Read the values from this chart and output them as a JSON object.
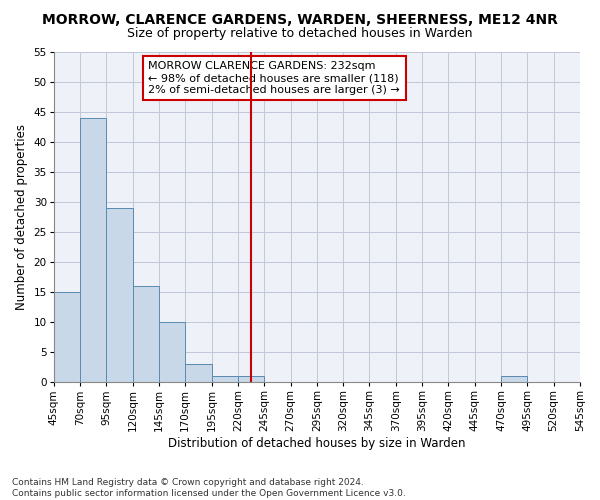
{
  "title": "MORROW, CLARENCE GARDENS, WARDEN, SHEERNESS, ME12 4NR",
  "subtitle": "Size of property relative to detached houses in Warden",
  "xlabel": "Distribution of detached houses by size in Warden",
  "ylabel": "Number of detached properties",
  "footer_line1": "Contains HM Land Registry data © Crown copyright and database right 2024.",
  "footer_line2": "Contains public sector information licensed under the Open Government Licence v3.0.",
  "bins": [
    45,
    70,
    95,
    120,
    145,
    170,
    195,
    220,
    245,
    270,
    295,
    320,
    345,
    370,
    395,
    420,
    445,
    470,
    495,
    520,
    545
  ],
  "bar_values": [
    15,
    44,
    29,
    16,
    10,
    3,
    1,
    1,
    0,
    0,
    0,
    0,
    0,
    0,
    0,
    0,
    0,
    1,
    0,
    0
  ],
  "bar_color": "#c8d8e8",
  "bar_edgecolor": "#5a8ab0",
  "grid_color": "#c0c8d8",
  "background_color": "#eef2f8",
  "vline_x": 232,
  "vline_color": "#cc0000",
  "annotation_line1": "MORROW CLARENCE GARDENS: 232sqm",
  "annotation_line2": "← 98% of detached houses are smaller (118)",
  "annotation_line3": "2% of semi-detached houses are larger (3) →",
  "annotation_box_color": "#cc0000",
  "ylim": [
    0,
    55
  ],
  "yticks": [
    0,
    5,
    10,
    15,
    20,
    25,
    30,
    35,
    40,
    45,
    50,
    55
  ],
  "title_fontsize": 10,
  "subtitle_fontsize": 9,
  "annotation_fontsize": 8,
  "axis_label_fontsize": 8.5,
  "tick_fontsize": 7.5,
  "footer_fontsize": 6.5
}
